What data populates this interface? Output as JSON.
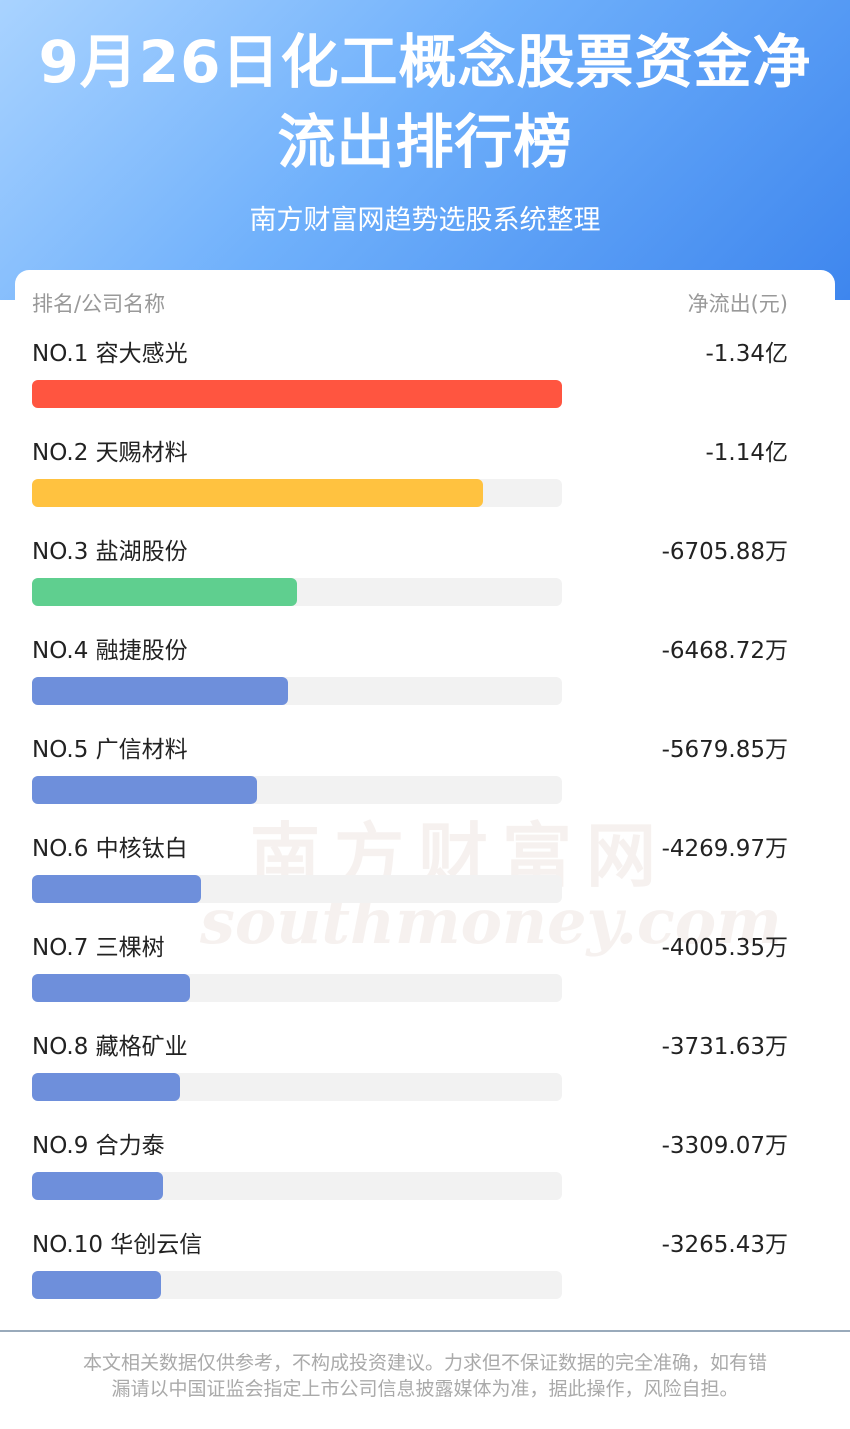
{
  "chart_data": {
    "type": "bar",
    "title": "9月26日化工概念股票资金净流出排行榜",
    "subtitle": "南方财富网趋势选股系统整理",
    "category_header": "排名/公司名称",
    "value_header": "净流出(元)",
    "categories": [
      "NO.1 容大感光",
      "NO.2 天赐材料",
      "NO.3 盐湖股份",
      "NO.4 融捷股份",
      "NO.5 广信材料",
      "NO.6 中核钛白",
      "NO.7 三棵树",
      "NO.8 藏格矿业",
      "NO.9 合力泰",
      "NO.10 华创云信"
    ],
    "values": [
      -134000000,
      -114000000,
      -67058800,
      -64687200,
      -56798500,
      -42699700,
      -40053500,
      -37316300,
      -33090700,
      -32654300
    ],
    "value_labels": [
      "-1.34亿",
      "-1.14亿",
      "-6705.88万",
      "-6468.72万",
      "-5679.85万",
      "-4269.97万",
      "-4005.35万",
      "-3731.63万",
      "-3309.07万",
      "-3265.43万"
    ],
    "colors": [
      "#ff5540",
      "#ffc240",
      "#5fcf8f",
      "#6e8fdb",
      "#6e8fdb",
      "#6e8fdb",
      "#6e8fdb",
      "#6e8fdb",
      "#6e8fdb",
      "#6e8fdb"
    ]
  },
  "watermark": {
    "cn": "南方财富网",
    "en": "southmoney.com"
  },
  "footer": {
    "disclaimer": "本文相关数据仅供参考，不构成投资建议。力求但不保证数据的完全准确，如有错漏请以中国证监会指定上市公司信息披露媒体为准，据此操作，风险自担。"
  }
}
